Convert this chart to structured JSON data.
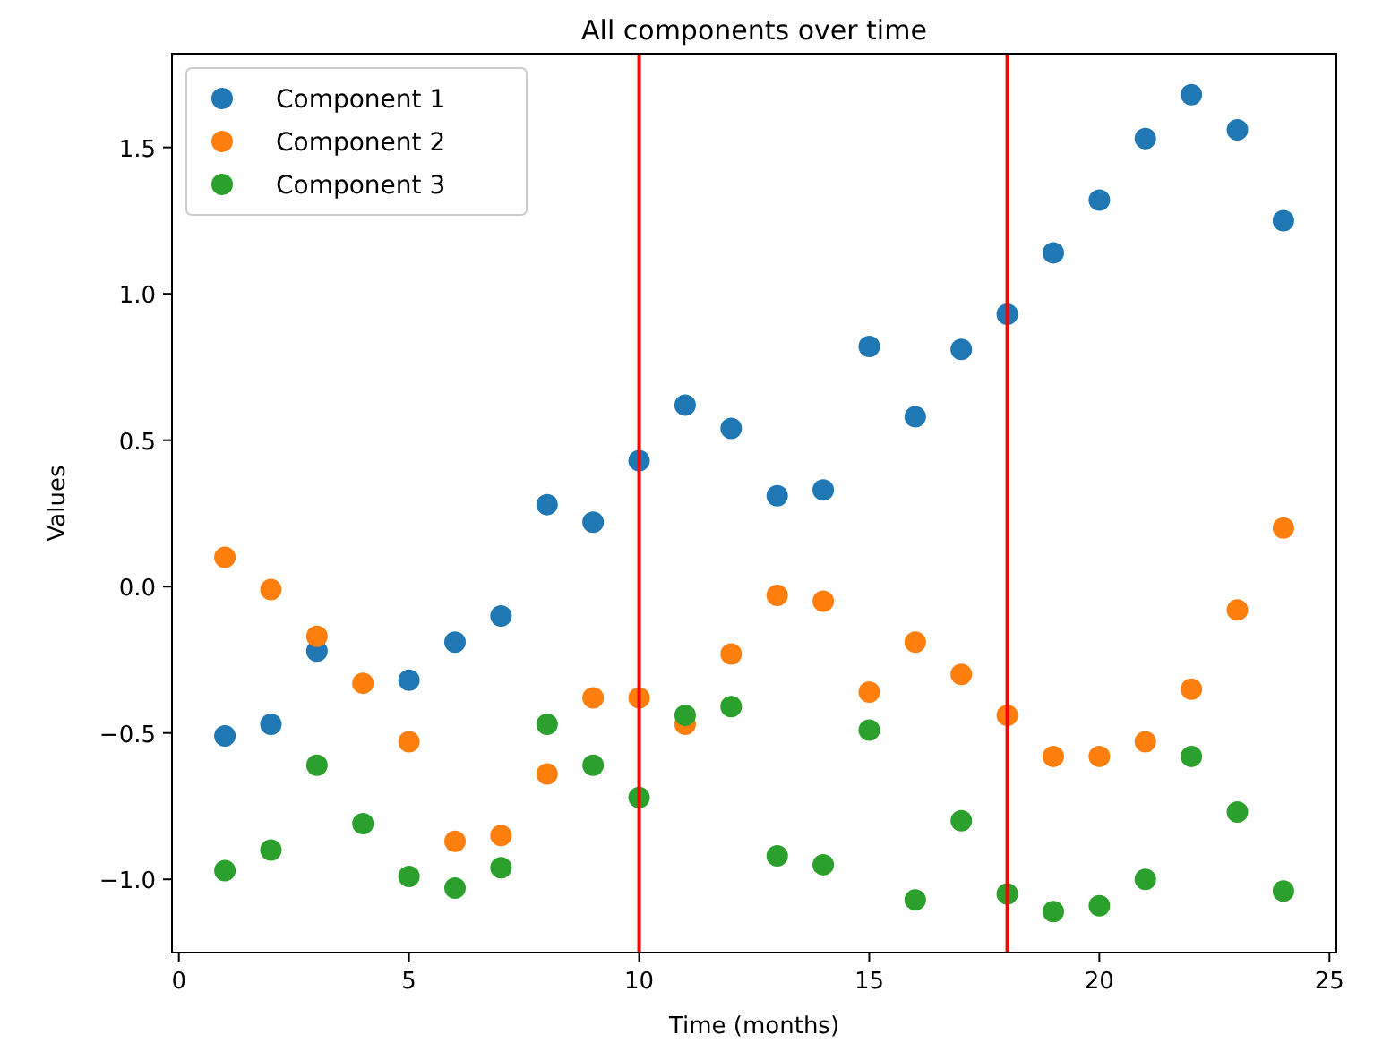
{
  "chart_data": {
    "type": "scatter",
    "title": "All components over time",
    "xlabel": "Time (months)",
    "ylabel": "Values",
    "x": [
      1,
      2,
      3,
      4,
      5,
      6,
      7,
      8,
      9,
      10,
      11,
      12,
      13,
      14,
      15,
      16,
      17,
      18,
      19,
      20,
      21,
      22,
      23,
      24
    ],
    "series": [
      {
        "name": "Component 1",
        "color": "#1f77b4",
        "values": [
          -0.51,
          -0.47,
          -0.22,
          null,
          -0.32,
          -0.19,
          -0.1,
          0.28,
          0.22,
          0.43,
          0.62,
          0.54,
          0.31,
          0.33,
          0.82,
          0.58,
          0.81,
          0.93,
          1.14,
          1.32,
          1.53,
          1.68,
          1.56,
          1.25
        ]
      },
      {
        "name": "Component 2",
        "color": "#ff7f0e",
        "values": [
          0.1,
          -0.01,
          -0.17,
          -0.33,
          -0.53,
          -0.87,
          -0.85,
          -0.64,
          -0.38,
          -0.38,
          -0.47,
          -0.23,
          -0.03,
          -0.05,
          -0.36,
          -0.19,
          -0.3,
          -0.44,
          -0.58,
          -0.58,
          -0.53,
          -0.35,
          -0.08,
          0.2
        ]
      },
      {
        "name": "Component 3",
        "color": "#2ca02c",
        "values": [
          -0.97,
          -0.9,
          -0.61,
          -0.81,
          -0.99,
          -1.03,
          -0.96,
          -0.47,
          -0.61,
          -0.72,
          -0.44,
          -0.41,
          -0.92,
          -0.95,
          -0.49,
          -1.07,
          -0.8,
          -1.05,
          -1.11,
          -1.09,
          -1.0,
          -0.58,
          -0.77,
          -1.04
        ]
      }
    ],
    "xlim": [
      -0.15,
      25.15
    ],
    "ylim": [
      -1.25,
      1.82
    ],
    "xticks": [
      0,
      5,
      10,
      15,
      20,
      25
    ],
    "yticks": [
      {
        "value": -1,
        "label": "−1.0"
      },
      {
        "value": -0.5,
        "label": "−0.5"
      },
      {
        "value": 0,
        "label": "0.0"
      },
      {
        "value": 0.5,
        "label": "0.5"
      },
      {
        "value": 1,
        "label": "1.0"
      },
      {
        "value": 1.5,
        "label": "1.5"
      }
    ],
    "ref_lines": [
      {
        "axis": "x",
        "value": 10,
        "color": "#ff0000"
      },
      {
        "axis": "x",
        "value": 18,
        "color": "#ff0000"
      }
    ],
    "marker": "circle",
    "legend": "top left",
    "grid": false
  }
}
